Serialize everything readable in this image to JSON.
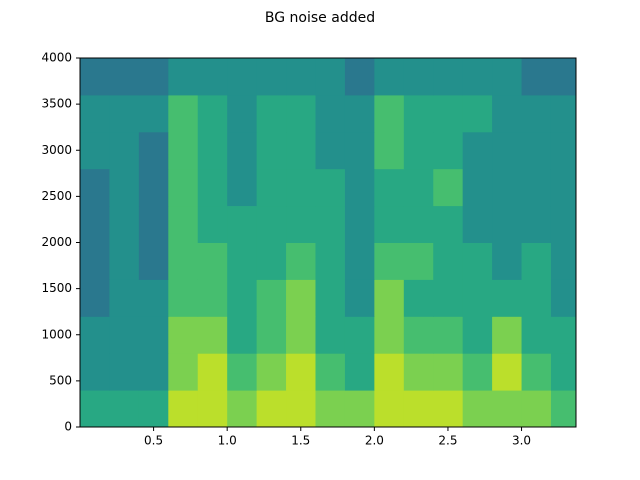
{
  "chart_data": {
    "type": "heatmap",
    "title": "BG noise added",
    "colormap": "viridis",
    "xlim": [
      0,
      3.37
    ],
    "ylim": [
      0,
      4000
    ],
    "zlim": [
      0,
      10
    ],
    "xticks": [
      0.5,
      {
        "value": 1,
        "label": "1.0"
      },
      1.5,
      {
        "value": 2,
        "label": "2.0"
      },
      2.5,
      {
        "value": 3,
        "label": "3.0"
      }
    ],
    "yticks": [
      0,
      500,
      1000,
      1500,
      2000,
      2500,
      3000,
      3500,
      4000
    ],
    "xbins": [
      0,
      0.2,
      0.4,
      0.6,
      0.8,
      1.0,
      1.2,
      1.4,
      1.6,
      1.8,
      2.0,
      2.2,
      2.4,
      2.6,
      2.8,
      3.0,
      3.2,
      3.37
    ],
    "ybins": [
      0,
      400,
      800,
      1200,
      1600,
      2000,
      2400,
      2800,
      3200,
      3600,
      4000
    ],
    "values": [
      [
        6,
        6,
        6,
        9,
        9,
        8,
        9,
        9,
        8,
        8,
        9,
        9,
        9,
        8,
        8,
        8,
        7
      ],
      [
        5,
        5,
        5,
        8,
        9,
        7,
        8,
        9,
        7,
        6,
        9,
        8,
        8,
        7,
        9,
        7,
        6
      ],
      [
        5,
        5,
        5,
        8,
        8,
        6,
        7,
        8,
        6,
        6,
        8,
        7,
        7,
        6,
        8,
        6,
        6
      ],
      [
        4,
        5,
        5,
        7,
        7,
        6,
        7,
        8,
        6,
        5,
        8,
        6,
        6,
        6,
        6,
        6,
        5
      ],
      [
        4,
        5,
        4,
        7,
        7,
        6,
        6,
        7,
        6,
        5,
        7,
        7,
        6,
        6,
        5,
        6,
        5
      ],
      [
        4,
        5,
        4,
        7,
        6,
        6,
        6,
        6,
        6,
        5,
        6,
        6,
        6,
        5,
        5,
        5,
        5
      ],
      [
        4,
        5,
        4,
        7,
        6,
        5,
        6,
        6,
        6,
        5,
        6,
        6,
        7,
        5,
        5,
        5,
        5
      ],
      [
        5,
        5,
        4,
        7,
        6,
        5,
        6,
        6,
        5,
        5,
        7,
        6,
        6,
        5,
        5,
        5,
        5
      ],
      [
        5,
        5,
        5,
        7,
        6,
        5,
        6,
        6,
        5,
        5,
        7,
        6,
        6,
        6,
        5,
        5,
        5
      ],
      [
        4,
        4,
        4,
        5,
        5,
        5,
        5,
        5,
        5,
        4,
        5,
        5,
        5,
        5,
        5,
        4,
        4
      ]
    ]
  }
}
